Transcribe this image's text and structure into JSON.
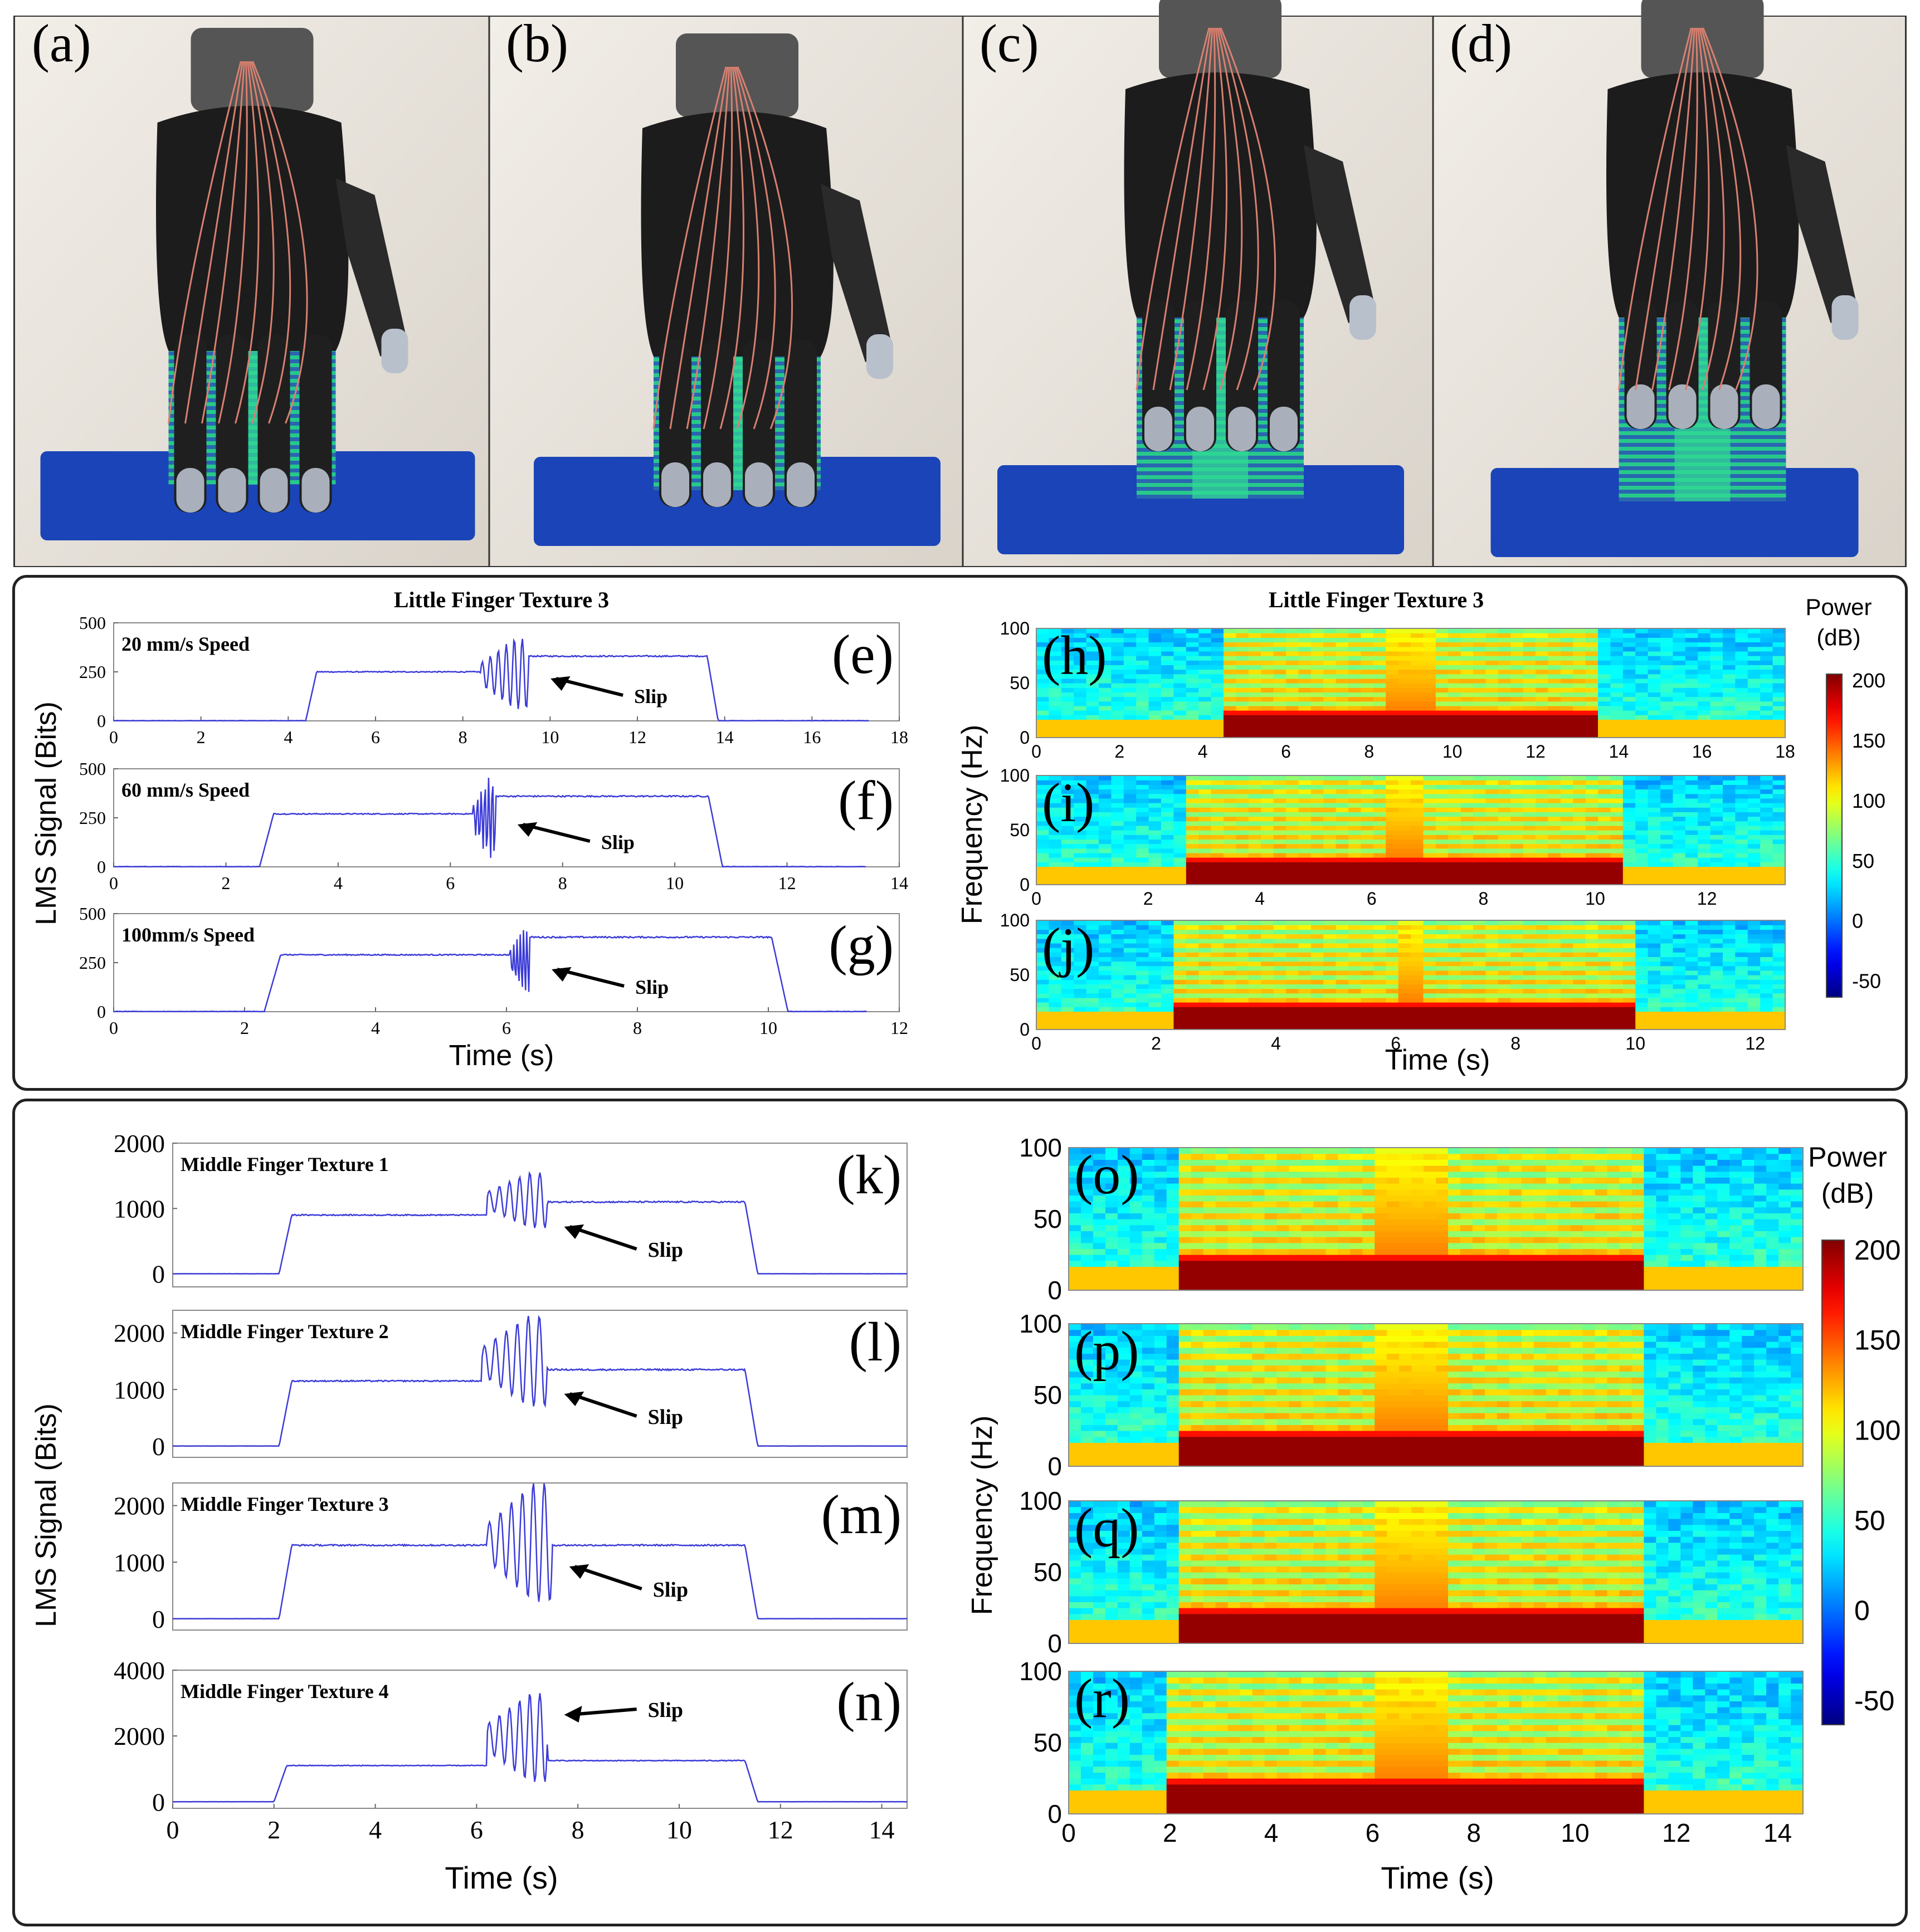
{
  "panels": {
    "photos": [
      {
        "label": "(a)",
        "stage": 1
      },
      {
        "label": "(b)",
        "stage": 2
      },
      {
        "label": "(c)",
        "stage": 3
      },
      {
        "label": "(d)",
        "stage": 4
      }
    ]
  },
  "colorbar": {
    "title_line1": "Power",
    "title_line2": "(dB)",
    "ticks": [
      200,
      150,
      100,
      50,
      0,
      -50
    ]
  },
  "chart_data": [
    {
      "id": "e",
      "type": "line",
      "label": "(e)",
      "title": "Little Finger Texture 3",
      "annotation": "20 mm/s Speed",
      "slip_label": "Slip",
      "xlim": [
        0,
        18
      ],
      "xticks": [
        0,
        2,
        4,
        6,
        8,
        10,
        12,
        14,
        16,
        18
      ],
      "ylim": [
        0,
        500
      ],
      "yticks": [
        0,
        250,
        500
      ],
      "ylabel": "LMS Signal (Bits)",
      "xlabel": "",
      "signal": {
        "rise": 4.4,
        "fall": 13.6,
        "end": 17.3,
        "level1": 250,
        "level2": 330,
        "slip_start": 8.4,
        "slip_end": 9.5,
        "slip_peak": 420,
        "slip_min": 60
      }
    },
    {
      "id": "f",
      "type": "line",
      "label": "(f)",
      "title": "",
      "annotation": "60 mm/s Speed",
      "slip_label": "Slip",
      "xlim": [
        0,
        14
      ],
      "xticks": [
        0,
        2,
        4,
        6,
        8,
        10,
        12,
        14
      ],
      "ylim": [
        0,
        500
      ],
      "yticks": [
        0,
        250,
        500
      ],
      "signal": {
        "rise": 2.6,
        "fall": 10.6,
        "end": 13.4,
        "level1": 270,
        "level2": 360,
        "slip_start": 6.4,
        "slip_end": 6.8,
        "slip_peak": 460,
        "slip_min": 40
      }
    },
    {
      "id": "g",
      "type": "line",
      "label": "(g)",
      "title": "",
      "annotation": "100mm/s Speed",
      "slip_label": "Slip",
      "xlim": [
        0,
        12
      ],
      "xticks": [
        0,
        2,
        4,
        6,
        8,
        10,
        12
      ],
      "ylim": [
        0,
        500
      ],
      "yticks": [
        0,
        250,
        500
      ],
      "xlabel": "Time (s)",
      "signal": {
        "rise": 2.3,
        "fall": 10.05,
        "end": 11.5,
        "level1": 290,
        "level2": 380,
        "slip_start": 6.05,
        "slip_end": 6.35,
        "slip_peak": 430,
        "slip_min": 80
      }
    },
    {
      "id": "h",
      "type": "heatmap",
      "label": "(h)",
      "title": "Little Finger Texture 3",
      "xlim": [
        0,
        18
      ],
      "xticks": [
        0,
        2,
        4,
        6,
        8,
        10,
        12,
        14,
        16,
        18
      ],
      "ylim": [
        0,
        100
      ],
      "yticks": [
        0,
        50,
        100
      ],
      "ylabel": "Frequency (Hz)",
      "signal": {
        "rise": 4.4,
        "fall": 13.6,
        "slip_start": 8.4,
        "slip_end": 9.5
      }
    },
    {
      "id": "i",
      "type": "heatmap",
      "label": "(i)",
      "title": "",
      "xlim": [
        0,
        13.4
      ],
      "xticks": [
        0,
        2,
        4,
        6,
        8,
        10,
        12
      ],
      "ylim": [
        0,
        100
      ],
      "yticks": [
        0,
        50,
        100
      ],
      "signal": {
        "rise": 2.6,
        "fall": 10.6,
        "slip_start": 6.4,
        "slip_end": 6.8
      }
    },
    {
      "id": "j",
      "type": "heatmap",
      "label": "(j)",
      "title": "",
      "xlim": [
        0,
        12.5
      ],
      "xticks": [
        0,
        2,
        4,
        6,
        8,
        10,
        12
      ],
      "ylim": [
        0,
        100
      ],
      "yticks": [
        0,
        50,
        100
      ],
      "xlabel": "Time (s)",
      "signal": {
        "rise": 2.3,
        "fall": 10.05,
        "slip_start": 6.05,
        "slip_end": 6.35
      }
    },
    {
      "id": "k",
      "type": "line",
      "label": "(k)",
      "annotation": "Middle Finger Texture 1",
      "slip_label": "Slip",
      "xlim": [
        0,
        14.5
      ],
      "ylim": [
        -200,
        2000
      ],
      "yticks": [
        0,
        1000,
        2000
      ],
      "ylabel": "LMS Signal (Bits)",
      "signal": {
        "rise": 2.1,
        "fall": 11.3,
        "end": 14.5,
        "level1": 900,
        "level2": 1100,
        "slip_start": 6.2,
        "slip_end": 7.4,
        "slip_peak": 1550,
        "slip_min": 700
      }
    },
    {
      "id": "l",
      "type": "line",
      "label": "(l)",
      "annotation": "Middle Finger Texture 2",
      "slip_label": "Slip",
      "xlim": [
        0,
        14.5
      ],
      "ylim": [
        -200,
        2400
      ],
      "yticks": [
        0,
        1000,
        2000
      ],
      "signal": {
        "rise": 2.1,
        "fall": 11.3,
        "end": 14.5,
        "level1": 1150,
        "level2": 1350,
        "slip_start": 6.1,
        "slip_end": 7.4,
        "slip_peak": 2300,
        "slip_min": 700
      }
    },
    {
      "id": "m",
      "type": "line",
      "label": "(m)",
      "annotation": "Middle Finger Texture 3",
      "slip_label": "Slip",
      "xlim": [
        0,
        14.5
      ],
      "ylim": [
        -200,
        2400
      ],
      "yticks": [
        0,
        1000,
        2000
      ],
      "signal": {
        "rise": 2.1,
        "fall": 11.3,
        "end": 14.5,
        "level1": 1300,
        "level2": 1300,
        "slip_start": 6.2,
        "slip_end": 7.5,
        "slip_peak": 2400,
        "slip_min": 300
      }
    },
    {
      "id": "n",
      "type": "line",
      "label": "(n)",
      "annotation": "Middle Finger Texture 4",
      "slip_label": "Slip",
      "xlim": [
        0,
        14.5
      ],
      "xticks": [
        0,
        2,
        4,
        6,
        8,
        10,
        12,
        14
      ],
      "ylim": [
        -200,
        4000
      ],
      "yticks": [
        0,
        2000,
        4000
      ],
      "xlabel": "Time (s)",
      "signal": {
        "rise": 2.0,
        "fall": 11.3,
        "end": 14.5,
        "level1": 1100,
        "level2": 1250,
        "slip_start": 6.2,
        "slip_end": 7.4,
        "slip_peak": 3300,
        "slip_min": 600
      }
    },
    {
      "id": "o",
      "type": "heatmap",
      "label": "(o)",
      "xlim": [
        0,
        14.5
      ],
      "ylim": [
        0,
        100
      ],
      "yticks": [
        0,
        50,
        100
      ],
      "signal": {
        "rise": 2.1,
        "fall": 11.3,
        "slip_start": 6.2,
        "slip_end": 7.4
      }
    },
    {
      "id": "p",
      "type": "heatmap",
      "label": "(p)",
      "xlim": [
        0,
        14.5
      ],
      "ylim": [
        0,
        100
      ],
      "yticks": [
        0,
        50,
        100
      ],
      "ylabel": "Frequency (Hz)",
      "signal": {
        "rise": 2.1,
        "fall": 11.3,
        "slip_start": 6.1,
        "slip_end": 7.4
      }
    },
    {
      "id": "q",
      "type": "heatmap",
      "label": "(q)",
      "xlim": [
        0,
        14.5
      ],
      "ylim": [
        0,
        100
      ],
      "yticks": [
        0,
        50,
        100
      ],
      "signal": {
        "rise": 2.1,
        "fall": 11.3,
        "slip_start": 6.2,
        "slip_end": 7.5
      }
    },
    {
      "id": "r",
      "type": "heatmap",
      "label": "(r)",
      "xlim": [
        0,
        14.5
      ],
      "xticks": [
        0,
        2,
        4,
        6,
        8,
        10,
        12,
        14
      ],
      "ylim": [
        0,
        100
      ],
      "yticks": [
        0,
        50,
        100
      ],
      "xlabel": "Time (s)",
      "signal": {
        "rise": 2.0,
        "fall": 11.3,
        "slip_start": 6.2,
        "slip_end": 7.4
      }
    }
  ]
}
